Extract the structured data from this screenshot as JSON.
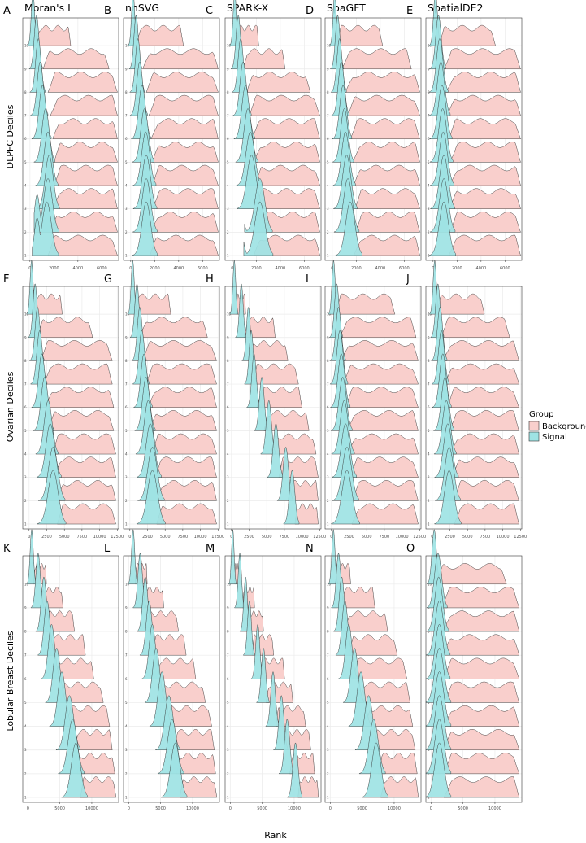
{
  "legend": {
    "title": "Group",
    "entries": [
      {
        "label": "Background",
        "color": "#F8766D",
        "fill": "#F9CFCC"
      },
      {
        "label": "Signal",
        "color": "#00BFC4",
        "fill": "#9EE3E4"
      }
    ]
  },
  "x_axis_title": "Rank",
  "columns": [
    "Moran's I",
    "nnSVG",
    "SPARK-X",
    "SpaGFT",
    "SpatialDE2"
  ],
  "chart_data": {
    "type": "ridgeline-density",
    "x_title": "Rank",
    "deciles": [
      "1",
      "2",
      "3",
      "4",
      "5",
      "6",
      "7",
      "8",
      "9",
      "10"
    ],
    "rows": [
      {
        "name": "DLPFC Deciles",
        "xlim": [
          -600,
          7400
        ],
        "ticks": [
          0,
          2000,
          4000,
          6000
        ],
        "tick_labels": [
          "0",
          "2000",
          "4000",
          "6000"
        ],
        "panels": [
          {
            "letter": "A",
            "method": "Moran's I",
            "signal_peak": [
              1400,
              1500,
              1600,
              1500,
              1300,
              1050,
              850,
              700,
              550,
              250
            ],
            "signal_width": [
              380,
              360,
              330,
              320,
              300,
              280,
              250,
              220,
              190,
              140
            ],
            "signal_bimodal_at": 600,
            "bg_start": [
              1500,
              1700,
              1900,
              2000,
              2000,
              1900,
              1700,
              1500,
              1100,
              500
            ],
            "bg_end": [
              7300,
              7300,
              7300,
              7300,
              7300,
              7300,
              7300,
              7300,
              6600,
              3400
            ]
          },
          {
            "letter": "B",
            "method": "nnSVG",
            "signal_peak": [
              1300,
              1300,
              1300,
              1250,
              1150,
              950,
              750,
              600,
              450,
              200
            ],
            "signal_width": [
              360,
              350,
              340,
              330,
              310,
              280,
              250,
              210,
              180,
              130
            ],
            "signal_bimodal_at": null,
            "bg_start": [
              1600,
              1700,
              1800,
              1800,
              1800,
              1700,
              1500,
              1300,
              1000,
              400
            ],
            "bg_end": [
              7300,
              7300,
              7300,
              7300,
              7300,
              7300,
              7300,
              7300,
              7300,
              4400
            ]
          },
          {
            "letter": "C",
            "method": "SPARK-X",
            "signal_peak": [
              2300,
              2300,
              1600,
              1500,
              1300,
              1100,
              900,
              700,
              500,
              200
            ],
            "signal_width": [
              420,
              400,
              380,
              360,
              320,
              300,
              260,
              220,
              190,
              130
            ],
            "signal_bimodal_at": 600,
            "bg_start": [
              1800,
              1900,
              1900,
              1900,
              1800,
              1600,
              1400,
              1200,
              900,
              400
            ],
            "bg_end": [
              7300,
              7300,
              7300,
              7300,
              7300,
              7300,
              7300,
              6500,
              4400,
              2200
            ]
          },
          {
            "letter": "D",
            "method": "SpaGFT",
            "signal_peak": [
              1500,
              1300,
              1200,
              1100,
              1000,
              900,
              750,
              600,
              450,
              200
            ],
            "signal_width": [
              380,
              360,
              340,
              320,
              300,
              280,
              250,
              220,
              190,
              130
            ],
            "signal_bimodal_at": null,
            "bg_start": [
              1800,
              1900,
              1900,
              1800,
              1700,
              1500,
              1300,
              1100,
              800,
              350
            ],
            "bg_end": [
              7300,
              7300,
              7300,
              7300,
              7300,
              7300,
              7300,
              7300,
              6600,
              4200
            ]
          },
          {
            "letter": "E",
            "method": "SpatialDE2",
            "signal_peak": [
              900,
              900,
              900,
              850,
              800,
              750,
              650,
              550,
              450,
              200
            ],
            "signal_width": [
              380,
              360,
              350,
              340,
              330,
              320,
              300,
              270,
              230,
              160
            ],
            "signal_bimodal_at": null,
            "bg_start": [
              1300,
              1400,
              1400,
              1400,
              1400,
              1300,
              1200,
              1100,
              900,
              500
            ],
            "bg_end": [
              7300,
              7300,
              7300,
              7300,
              7300,
              7300,
              7300,
              7300,
              7300,
              5200
            ]
          }
        ]
      },
      {
        "name": "Ovarian Deciles",
        "xlim": [
          -900,
          12700
        ],
        "ticks": [
          0,
          2500,
          5000,
          7500,
          10000,
          12500
        ],
        "tick_labels": [
          "0",
          "2500",
          "5000",
          "7500",
          "10000",
          "12500"
        ],
        "panels": [
          {
            "letter": "F",
            "method": "Moran's I",
            "signal_peak": [
              3400,
              3400,
              3000,
              2700,
              2200,
              1800,
              1500,
              1200,
              850,
              350
            ],
            "signal_width": [
              700,
              650,
              600,
              550,
              500,
              450,
              400,
              350,
              300,
              220
            ],
            "signal_bimodal_at": null,
            "bg_start": [
              4000,
              4000,
              3500,
              3200,
              2700,
              2300,
              2000,
              1600,
              1200,
              500
            ],
            "bg_end": [
              12300,
              12300,
              12300,
              12300,
              12000,
              12000,
              11800,
              11800,
              9000,
              4700
            ]
          },
          {
            "letter": "G",
            "method": "nnSVG",
            "signal_peak": [
              3200,
              3200,
              2900,
              2600,
              2300,
              2000,
              1700,
              1400,
              1000,
              400
            ],
            "signal_width": [
              700,
              650,
              600,
              550,
              500,
              450,
              400,
              350,
              300,
              220
            ],
            "signal_bimodal_at": null,
            "bg_start": [
              3800,
              3800,
              3500,
              3100,
              2800,
              2500,
              2200,
              1800,
              1400,
              600
            ],
            "bg_end": [
              12300,
              12300,
              12300,
              12300,
              12300,
              12300,
              12300,
              12300,
              11000,
              5800
            ]
          },
          {
            "letter": "H",
            "method": "SPARK-X",
            "signal_peak": [
              8600,
              7700,
              6300,
              5300,
              4300,
              3200,
              2800,
              2400,
              1400,
              400
            ],
            "signal_width": [
              380,
              380,
              380,
              360,
              340,
              320,
              300,
              280,
              260,
              200
            ],
            "signal_bimodal_at": null,
            "bg_start": [
              9000,
              8000,
              6700,
              5600,
              4600,
              3600,
              3000,
              2600,
              1800,
              700
            ],
            "bg_end": [
              12300,
              12300,
              12300,
              12000,
              11000,
              10000,
              9500,
              8000,
              6200,
              2000
            ]
          },
          {
            "letter": "I",
            "method": "SpaGFT",
            "signal_peak": [
              2200,
              2200,
              2000,
              1800,
              1600,
              1400,
              1200,
              1000,
              750,
              300
            ],
            "signal_width": [
              700,
              650,
              600,
              560,
              520,
              480,
              430,
              380,
              320,
              230
            ],
            "signal_bimodal_at": null,
            "bg_start": [
              2900,
              2900,
              2700,
              2400,
              2200,
              1900,
              1700,
              1400,
              1100,
              500
            ],
            "bg_end": [
              12300,
              12300,
              12300,
              12300,
              12300,
              12300,
              12300,
              12300,
              12000,
              9000
            ]
          },
          {
            "letter": "J",
            "method": "SpatialDE2",
            "signal_peak": [
              2400,
              2400,
              2200,
              2000,
              1800,
              1500,
              1300,
              1100,
              800,
              350
            ],
            "signal_width": [
              650,
              620,
              580,
              540,
              500,
              460,
              420,
              380,
              320,
              230
            ],
            "signal_bimodal_at": null,
            "bg_start": [
              3100,
              3100,
              2900,
              2600,
              2400,
              2100,
              1800,
              1500,
              1200,
              600
            ],
            "bg_end": [
              12300,
              12300,
              12300,
              12300,
              12300,
              12300,
              12300,
              12300,
              11000,
              7400
            ]
          }
        ]
      },
      {
        "name": "Lobular Breast Deciles",
        "xlim": [
          -800,
          14200
        ],
        "ticks": [
          0,
          5000,
          10000
        ],
        "tick_labels": [
          "0",
          "5000",
          "10000"
        ],
        "panels": [
          {
            "letter": "K",
            "method": "Moran's I",
            "signal_peak": [
              7500,
              7000,
              6500,
              5300,
              4500,
              3700,
              3000,
              2500,
              1600,
              600
            ],
            "signal_width": [
              700,
              700,
              650,
              600,
              550,
              500,
              450,
              400,
              350,
              250
            ],
            "signal_bimodal_at": null,
            "bg_start": [
              8200,
              7700,
              7200,
              6000,
              5100,
              4300,
              3500,
              2900,
              2000,
              900
            ],
            "bg_end": [
              13800,
              13600,
              13200,
              12800,
              11800,
              10300,
              9000,
              7300,
              5500,
              2900
            ]
          },
          {
            "letter": "L",
            "method": "nnSVG",
            "signal_peak": [
              7300,
              6800,
              6300,
              5200,
              4300,
              3700,
              3200,
              2600,
              1800,
              700
            ],
            "signal_width": [
              700,
              700,
              650,
              600,
              550,
              500,
              450,
              400,
              350,
              250
            ],
            "signal_bimodal_at": null,
            "bg_start": [
              8000,
              7500,
              7000,
              5900,
              5000,
              4300,
              3700,
              3000,
              2200,
              1000
            ],
            "bg_end": [
              13800,
              13600,
              13400,
              13000,
              12000,
              10500,
              9000,
              7800,
              5500,
              2900
            ]
          },
          {
            "letter": "M",
            "method": "SPARK-X",
            "signal_peak": [
              10200,
              8900,
              8000,
              6700,
              5200,
              4300,
              3000,
              2400,
              1500,
              400
            ],
            "signal_width": [
              400,
              400,
              380,
              360,
              340,
              320,
              300,
              280,
              260,
              200
            ],
            "signal_bimodal_at": null,
            "bg_start": [
              10600,
              9300,
              8400,
              7100,
              5600,
              4700,
              3400,
              2800,
              1900,
              700
            ],
            "bg_end": [
              13800,
              13200,
              12600,
              11800,
              9800,
              8500,
              6800,
              5200,
              3800,
              1500
            ]
          },
          {
            "letter": "N",
            "method": "SpaGFT",
            "signal_peak": [
              7200,
              6800,
              6000,
              4800,
              3800,
              2900,
              2300,
              1800,
              1300,
              500
            ],
            "signal_width": [
              700,
              700,
              650,
              600,
              550,
              500,
              450,
              400,
              350,
              250
            ],
            "signal_bimodal_at": null,
            "bg_start": [
              7900,
              7500,
              6700,
              5500,
              4500,
              3500,
              2900,
              2300,
              1700,
              800
            ],
            "bg_end": [
              13800,
              13600,
              13300,
              12900,
              12500,
              12000,
              10500,
              9000,
              7000,
              3200
            ]
          },
          {
            "letter": "O",
            "method": "SpatialDE2",
            "signal_peak": [
              1300,
              1300,
              1300,
              1300,
              1300,
              1300,
              1300,
              1200,
              1100,
              500
            ],
            "signal_width": [
              700,
              700,
              700,
              700,
              700,
              650,
              650,
              600,
              550,
              350
            ],
            "signal_bimodal_at": null,
            "bg_start": [
              2000,
              2000,
              2000,
              2000,
              2000,
              2000,
              1900,
              1800,
              1600,
              800
            ],
            "bg_end": [
              13800,
              13800,
              13800,
              13800,
              13800,
              13800,
              13800,
              13800,
              13800,
              11800
            ]
          }
        ]
      }
    ]
  }
}
